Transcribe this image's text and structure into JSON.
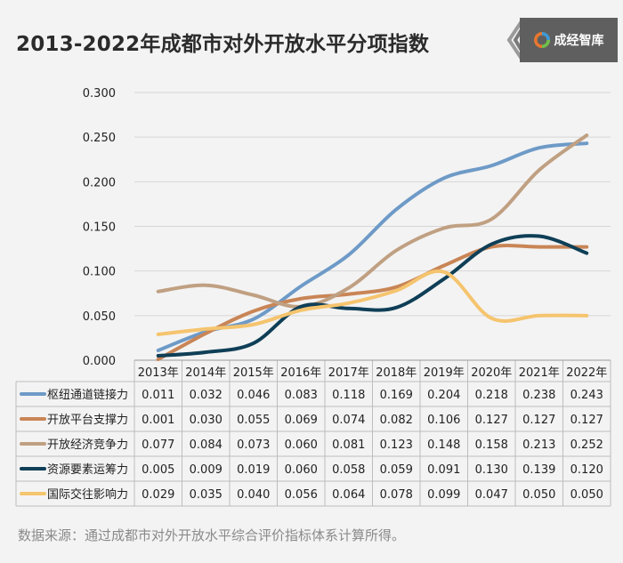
{
  "title": "2013-2022年成都市对外开放水平分项指数",
  "logo": {
    "text": "成经智库",
    "icon": "logo-mark-icon"
  },
  "source": "数据来源：通过成都市对外开放水平综合评价指标体系计算所得。",
  "chart_data": {
    "type": "line",
    "smooth": true,
    "categories": [
      "2013年",
      "2014年",
      "2015年",
      "2016年",
      "2017年",
      "2018年",
      "2019年",
      "2020年",
      "2021年",
      "2022年"
    ],
    "y_ticks": [
      "0.300",
      "0.250",
      "0.200",
      "0.150",
      "0.100",
      "0.050",
      "0.000"
    ],
    "ylim": [
      0,
      0.3
    ],
    "grid": true,
    "legend_position": "data-table-left",
    "series": [
      {
        "name": "枢纽通道链接力",
        "color": "#6e9ac7",
        "values": [
          0.011,
          0.032,
          0.046,
          0.083,
          0.118,
          0.169,
          0.204,
          0.218,
          0.238,
          0.243
        ],
        "labels": [
          "0.011",
          "0.032",
          "0.046",
          "0.083",
          "0.118",
          "0.169",
          "0.204",
          "0.218",
          "0.238",
          "0.243"
        ]
      },
      {
        "name": "开放平台支撑力",
        "color": "#c98556",
        "values": [
          0.001,
          0.03,
          0.055,
          0.069,
          0.074,
          0.082,
          0.106,
          0.127,
          0.127,
          0.127
        ],
        "labels": [
          "0.001",
          "0.030",
          "0.055",
          "0.069",
          "0.074",
          "0.082",
          "0.106",
          "0.127",
          "0.127",
          "0.127"
        ]
      },
      {
        "name": "开放经济竞争力",
        "color": "#c0a082",
        "values": [
          0.077,
          0.084,
          0.073,
          0.06,
          0.081,
          0.123,
          0.148,
          0.158,
          0.213,
          0.252
        ],
        "labels": [
          "0.077",
          "0.084",
          "0.073",
          "0.060",
          "0.081",
          "0.123",
          "0.148",
          "0.158",
          "0.213",
          "0.252"
        ]
      },
      {
        "name": "资源要素运筹力",
        "color": "#0f3f57",
        "values": [
          0.005,
          0.009,
          0.019,
          0.06,
          0.058,
          0.059,
          0.091,
          0.13,
          0.139,
          0.12
        ],
        "labels": [
          "0.005",
          "0.009",
          "0.019",
          "0.060",
          "0.058",
          "0.059",
          "0.091",
          "0.130",
          "0.139",
          "0.120"
        ]
      },
      {
        "name": "国际交往影响力",
        "color": "#f5c46e",
        "values": [
          0.029,
          0.035,
          0.04,
          0.056,
          0.064,
          0.078,
          0.099,
          0.047,
          0.05,
          0.05
        ],
        "labels": [
          "0.029",
          "0.035",
          "0.040",
          "0.056",
          "0.064",
          "0.078",
          "0.099",
          "0.047",
          "0.050",
          "0.050"
        ]
      }
    ]
  }
}
